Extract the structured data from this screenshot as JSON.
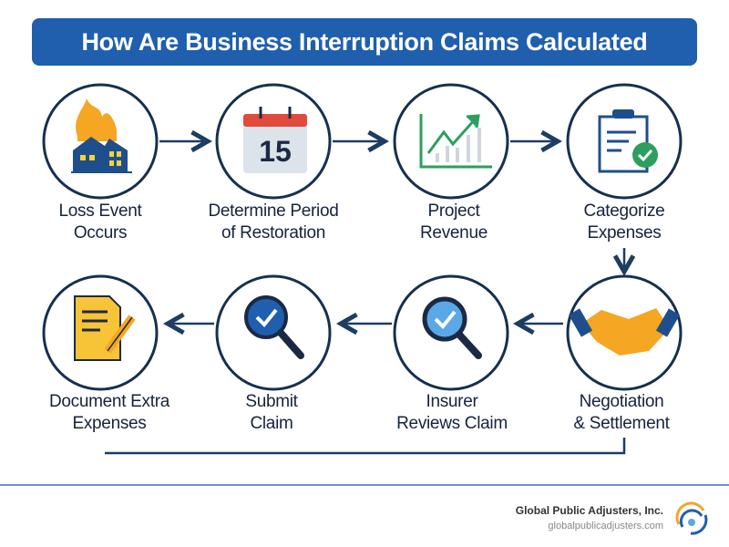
{
  "title": "How Are Business Interruption Claims Calculated",
  "steps": [
    {
      "line1": "Loss Event",
      "line2": "Occurs",
      "icon": "burning-building-icon"
    },
    {
      "line1": "Determine Period",
      "line2": "of Restoration",
      "icon": "calendar-icon",
      "icon_text": "15"
    },
    {
      "line1": "Project",
      "line2": "Revenue",
      "icon": "growth-chart-icon"
    },
    {
      "line1": "Categorize",
      "line2": "Expenses",
      "icon": "clipboard-check-icon"
    },
    {
      "line1": "Negotiation",
      "line2": "& Settlement",
      "icon": "handshake-icon"
    },
    {
      "line1": "Insurer",
      "line2": "Reviews Claim",
      "icon": "magnifier-check-icon"
    },
    {
      "line1": "Submit",
      "line2": "Claim",
      "icon": "magnifier-check-icon"
    },
    {
      "line1": "Document Extra",
      "line2": "Expenses",
      "icon": "document-pencil-icon"
    }
  ],
  "footer": {
    "company": "Global Public Adjusters, Inc.",
    "url": "globalpublicadjusters.com"
  },
  "colors": {
    "title_bg": "#1f5fae",
    "circle_stroke": "#16304f",
    "arrow": "#1d3d63",
    "fire": "#f5a623",
    "green": "#2e9e5e"
  }
}
